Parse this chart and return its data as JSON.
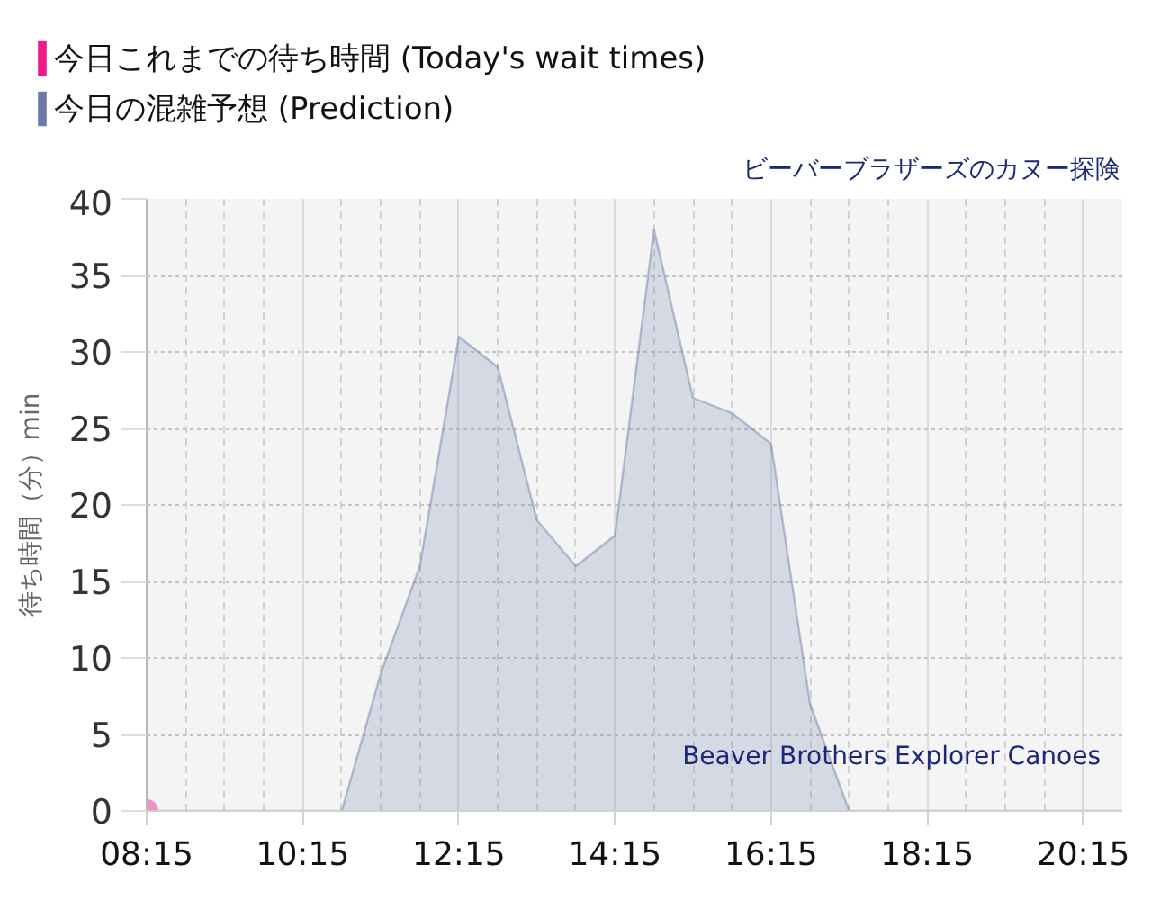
{
  "chart_data": {
    "type": "area",
    "title": "ビーバーブラザーズのカヌー探険",
    "ylabel": "待ち時間（分）min",
    "annotations": [
      "Beaver Brothers Explorer Canoes"
    ],
    "x": [
      8.25,
      8.75,
      9.25,
      9.75,
      10.25,
      10.75,
      11.25,
      11.75,
      12.25,
      12.75,
      13.25,
      13.75,
      14.25,
      14.75,
      15.25,
      15.75,
      16.25,
      16.75,
      17.25,
      17.75,
      18.25,
      18.75,
      19.25,
      19.75,
      20.25,
      20.75
    ],
    "series": [
      {
        "name": "今日これまでの待ち時間 (Today's wait times)",
        "type": "scatter",
        "marker": "circle",
        "color": "#ee1a8c",
        "x": [
          8.25
        ],
        "values": [
          0
        ]
      },
      {
        "name": "今日の混雑予想 (Prediction)",
        "color": "#6b7ba8",
        "values": [
          0,
          0,
          0,
          0,
          0,
          0,
          9,
          16,
          31,
          29,
          19,
          16,
          18,
          38,
          27,
          26,
          24,
          7,
          0,
          0,
          0,
          0,
          0,
          0,
          0,
          0
        ]
      }
    ],
    "xlim": [
      8.25,
      20.75
    ],
    "ylim": [
      0,
      40
    ],
    "xticks": [
      {
        "value": 8.25,
        "label": "08:15"
      },
      {
        "value": 8.75,
        "label": null
      },
      {
        "value": 9.25,
        "label": null
      },
      {
        "value": 9.75,
        "label": null
      },
      {
        "value": 10.25,
        "label": "10:15"
      },
      {
        "value": 10.75,
        "label": null
      },
      {
        "value": 11.25,
        "label": null
      },
      {
        "value": 11.75,
        "label": null
      },
      {
        "value": 12.25,
        "label": "12:15"
      },
      {
        "value": 12.75,
        "label": null
      },
      {
        "value": 13.25,
        "label": null
      },
      {
        "value": 13.75,
        "label": null
      },
      {
        "value": 14.25,
        "label": "14:15"
      },
      {
        "value": 14.75,
        "label": null
      },
      {
        "value": 15.25,
        "label": null
      },
      {
        "value": 15.75,
        "label": null
      },
      {
        "value": 16.25,
        "label": "16:15"
      },
      {
        "value": 16.75,
        "label": null
      },
      {
        "value": 17.25,
        "label": null
      },
      {
        "value": 17.75,
        "label": null
      },
      {
        "value": 18.25,
        "label": "18:15"
      },
      {
        "value": 18.75,
        "label": null
      },
      {
        "value": 19.25,
        "label": null
      },
      {
        "value": 19.75,
        "label": null
      },
      {
        "value": 20.25,
        "label": "20:15"
      }
    ],
    "yticks": [
      0,
      5,
      10,
      15,
      20,
      25,
      30,
      35,
      40
    ],
    "grid": true,
    "legend": "top left"
  }
}
